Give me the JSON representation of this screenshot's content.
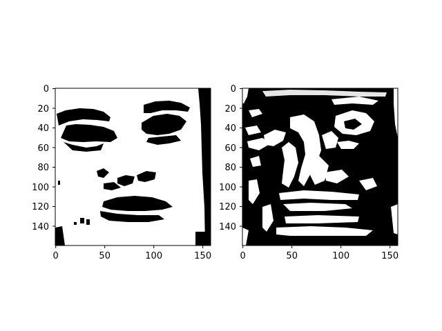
{
  "figure": {
    "background": "#ffffff",
    "subplots": [
      {
        "name": "left-panel",
        "content": "binary-thresholded face image (black features on white background)",
        "x_ticks": [
          "0",
          "50",
          "100",
          "150"
        ],
        "y_ticks": [
          "0",
          "20",
          "40",
          "60",
          "80",
          "100",
          "120",
          "140"
        ]
      },
      {
        "name": "right-panel",
        "content": "binary-thresholded image (mostly black with white swirls/structures)",
        "x_ticks": [
          "0",
          "50",
          "100",
          "150"
        ],
        "y_ticks": [
          "0",
          "20",
          "40",
          "60",
          "80",
          "100",
          "120",
          "140"
        ]
      }
    ]
  }
}
